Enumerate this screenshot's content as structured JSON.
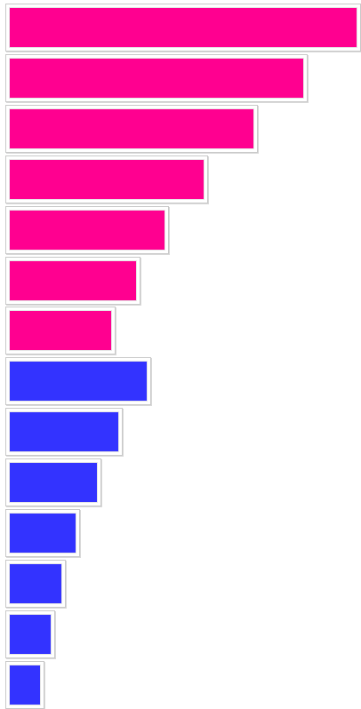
{
  "chart_data": {
    "type": "bar",
    "orientation": "horizontal",
    "title": "",
    "xlabel": "",
    "ylabel": "",
    "grid": false,
    "legend": "none",
    "xlim": [
      0,
      100
    ],
    "series": [
      {
        "color": "#ff0090",
        "values": [
          100,
          85,
          71,
          57,
          46,
          38,
          31
        ]
      },
      {
        "color": "#3333ff",
        "values": [
          41,
          33,
          27,
          21,
          17,
          14,
          11
        ]
      }
    ]
  }
}
